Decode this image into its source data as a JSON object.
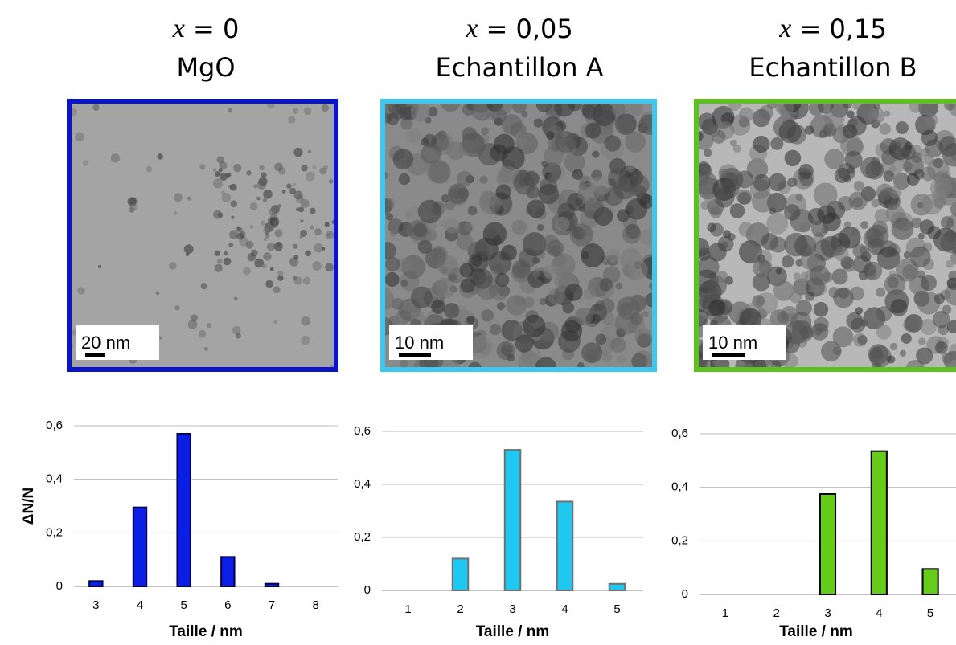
{
  "panels": [
    {
      "variable": "x",
      "equals": "= 0",
      "name": "MgO",
      "scale_bar": "20 nm",
      "frame_color": "#0a14c8"
    },
    {
      "variable": "x",
      "equals": "= 0,05",
      "name": "Echantillon A",
      "scale_bar": "10 nm",
      "frame_color": "#3cc8f0"
    },
    {
      "variable": "x",
      "equals": "= 0,15",
      "name": "Echantillon B",
      "scale_bar": "10 nm",
      "frame_color": "#5ec21e"
    }
  ],
  "chart_data": [
    {
      "type": "bar",
      "ylabel": "ΔN/N",
      "xlabel": "Taille / nm",
      "categories": [
        "3",
        "4",
        "5",
        "6",
        "7",
        "8"
      ],
      "values": [
        0.02,
        0.295,
        0.57,
        0.11,
        0.01,
        0
      ],
      "color": "#0a1ee6",
      "edge_color": "#000050",
      "ylim": [
        0,
        0.6
      ],
      "yticks": [
        0,
        {
          "value": 0.2,
          "label": "0,2"
        },
        {
          "value": 0.4,
          "label": "0,4"
        },
        {
          "value": 0.6,
          "label": "0,6"
        }
      ],
      "grid": true
    },
    {
      "type": "bar",
      "xlabel": "Taille / nm",
      "categories": [
        "1",
        "2",
        "3",
        "4",
        "5"
      ],
      "values": [
        0,
        0.12,
        0.53,
        0.335,
        0.025
      ],
      "color": "#1ec8f0",
      "edge_color": "#707070",
      "ylim": [
        0,
        0.6
      ],
      "yticks": [
        0,
        {
          "value": 0.2,
          "label": "0,2"
        },
        {
          "value": 0.4,
          "label": "0,4"
        },
        {
          "value": 0.6,
          "label": "0,6"
        }
      ],
      "grid": true
    },
    {
      "type": "bar",
      "xlabel": "Taille / nm",
      "categories": [
        "1",
        "2",
        "3",
        "4",
        "5"
      ],
      "values": [
        0,
        0,
        0.375,
        0.535,
        0.095
      ],
      "color": "#66cc1a",
      "edge_color": "#000000",
      "ylim": [
        0,
        0.6
      ],
      "yticks": [
        0,
        {
          "value": 0.2,
          "label": "0,2"
        },
        {
          "value": 0.4,
          "label": "0,4"
        },
        {
          "value": 0.6,
          "label": "0,6"
        }
      ],
      "grid": true
    }
  ]
}
